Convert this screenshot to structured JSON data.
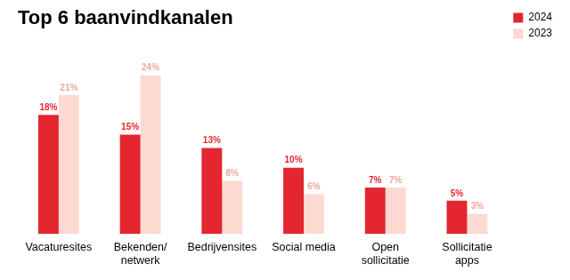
{
  "chart_data": {
    "type": "bar",
    "title": "Top 6 baanvindkanalen",
    "categories": [
      [
        "Vacaturesites"
      ],
      [
        "Bekenden/",
        "netwerk"
      ],
      [
        "Bedrijvensites"
      ],
      [
        "Social media"
      ],
      [
        "Open",
        "sollicitatie"
      ],
      [
        "Sollicitatie",
        "apps"
      ]
    ],
    "series": [
      {
        "name": "2024",
        "color": "#e3262f",
        "values": [
          18,
          15,
          13,
          10,
          7,
          5
        ],
        "value_labels": [
          "18%",
          "15%",
          "13%",
          "10%",
          "7%",
          "5%"
        ]
      },
      {
        "name": "2023",
        "color": "#fcd9d1",
        "values": [
          21,
          24,
          8,
          6,
          7,
          3
        ],
        "value_labels": [
          "21%",
          "24%",
          "8%",
          "6%",
          "7%",
          "3%"
        ]
      }
    ],
    "ylim": [
      0,
      27
    ],
    "grid": false,
    "legend": "right",
    "data_labels": true,
    "tick_labels": "x"
  }
}
